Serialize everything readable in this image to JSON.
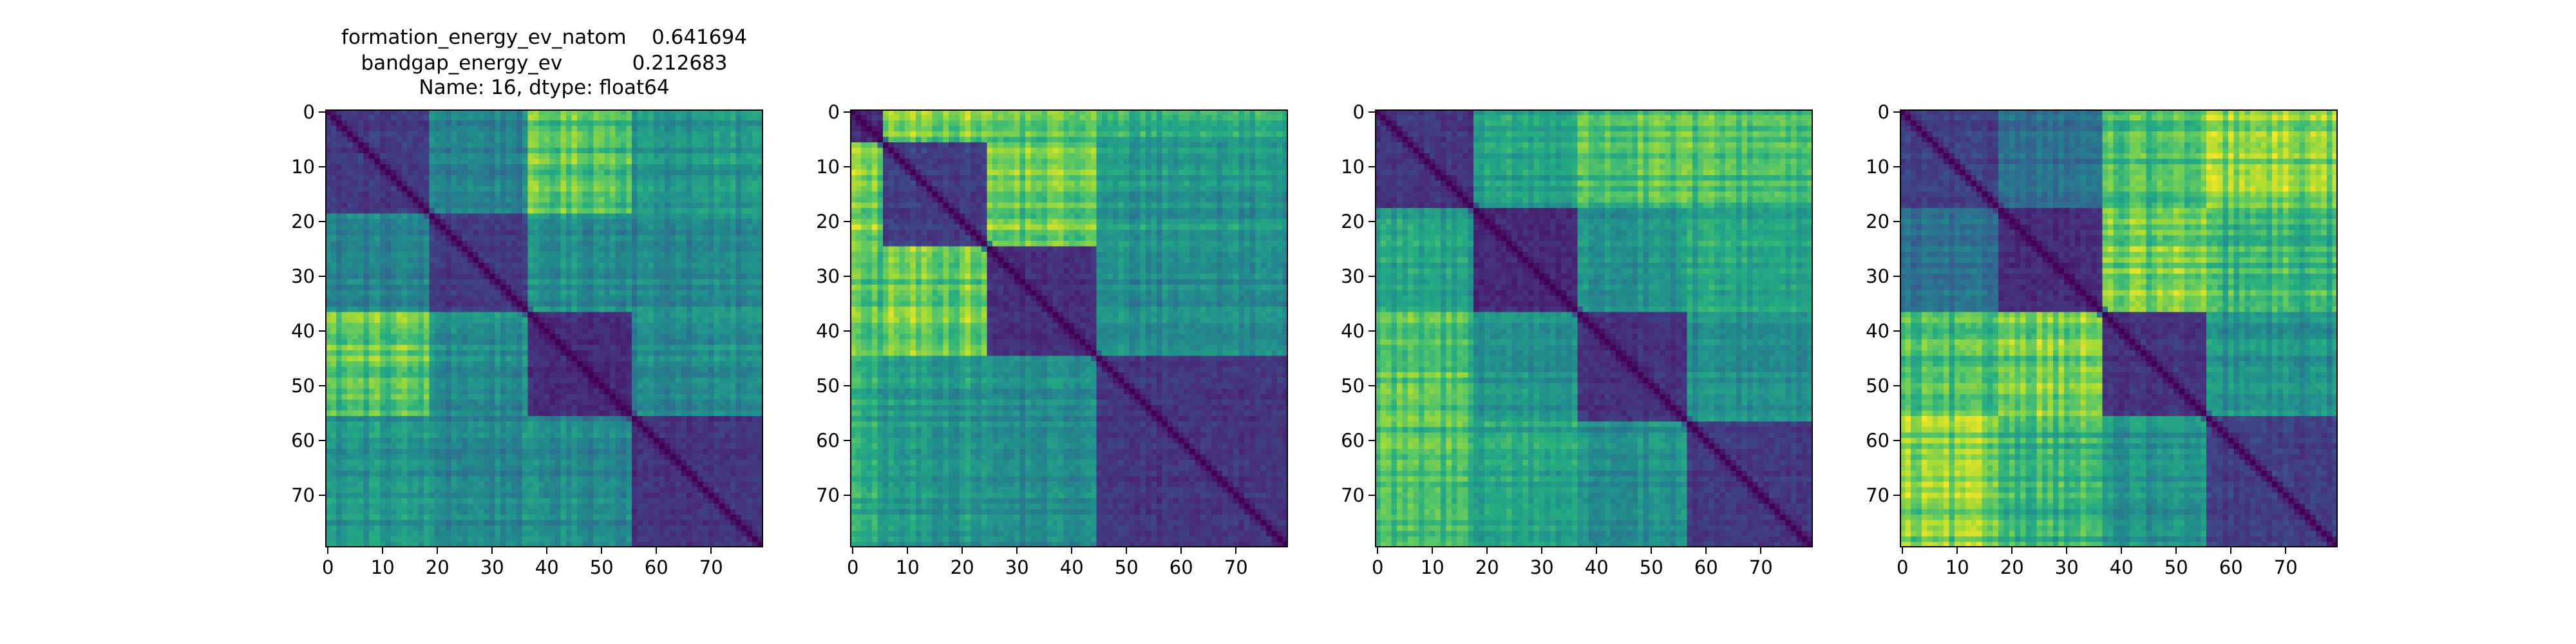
{
  "chart_data": [
    {
      "type": "heatmap",
      "title_lines": [
        "formation_energy_ev_natom    0.641694",
        "bandgap_energy_ev           0.212683",
        "Name: 16, dtype: float64"
      ],
      "size": 80,
      "block_boundaries": [
        0,
        19,
        37,
        56,
        80
      ],
      "xticks": [
        0,
        10,
        20,
        30,
        40,
        50,
        60,
        70
      ],
      "yticks": [
        0,
        10,
        20,
        30,
        40,
        50,
        60,
        70
      ],
      "colormap": "viridis"
    },
    {
      "type": "heatmap",
      "title_lines": [],
      "size": 80,
      "block_boundaries": [
        0,
        6,
        25,
        45,
        80
      ],
      "xticks": [
        0,
        10,
        20,
        30,
        40,
        50,
        60,
        70
      ],
      "yticks": [
        0,
        10,
        20,
        30,
        40,
        50,
        60,
        70
      ],
      "colormap": "viridis"
    },
    {
      "type": "heatmap",
      "title_lines": [],
      "size": 80,
      "block_boundaries": [
        0,
        18,
        37,
        57,
        80
      ],
      "xticks": [
        0,
        10,
        20,
        30,
        40,
        50,
        60,
        70
      ],
      "yticks": [
        0,
        10,
        20,
        30,
        40,
        50,
        60,
        70
      ],
      "colormap": "viridis"
    },
    {
      "type": "heatmap",
      "title_lines": [],
      "size": 80,
      "block_boundaries": [
        0,
        18,
        37,
        56,
        80
      ],
      "xticks": [
        0,
        10,
        20,
        30,
        40,
        50,
        60,
        70
      ],
      "yticks": [
        0,
        10,
        20,
        30,
        40,
        50,
        60,
        70
      ],
      "colormap": "viridis"
    }
  ]
}
